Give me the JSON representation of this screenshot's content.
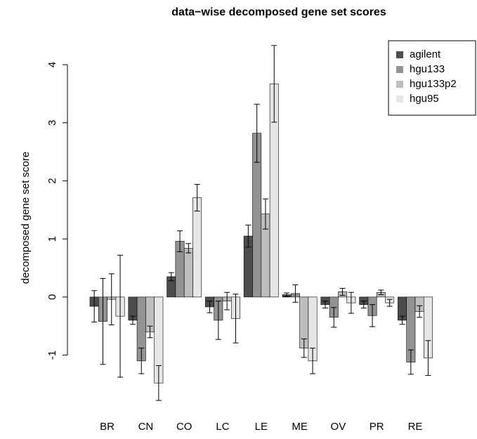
{
  "chart_data": {
    "type": "bar",
    "title": "data−wise decomposed gene set scores",
    "y_label": "decomposed gene set score",
    "categories": [
      "BR",
      "CN",
      "CO",
      "LC",
      "LE",
      "ME",
      "OV",
      "PR",
      "RE"
    ],
    "series": [
      {
        "name": "agilent",
        "color": "#4d4d4d",
        "values": [
          -0.16,
          -0.4,
          0.35,
          -0.17,
          1.05,
          0.04,
          -0.13,
          -0.13,
          -0.4
        ],
        "errors": [
          0.27,
          0.07,
          0.07,
          0.1,
          0.19,
          0.03,
          0.06,
          0.06,
          0.07
        ]
      },
      {
        "name": "hgu133",
        "color": "#939393",
        "values": [
          -0.42,
          -1.1,
          0.96,
          -0.4,
          2.82,
          0.06,
          -0.35,
          -0.32,
          -1.12
        ],
        "errors": [
          0.74,
          0.22,
          0.18,
          0.33,
          0.5,
          0.15,
          0.17,
          0.19,
          0.21
        ]
      },
      {
        "name": "hgu133p2",
        "color": "#bebebe",
        "values": [
          -0.04,
          -0.6,
          0.84,
          -0.07,
          1.43,
          -0.88,
          0.09,
          0.08,
          -0.25
        ],
        "errors": [
          0.44,
          0.1,
          0.08,
          0.15,
          0.26,
          0.16,
          0.06,
          0.04,
          0.1
        ]
      },
      {
        "name": "hgu95",
        "color": "#e6e6e6",
        "values": [
          -0.33,
          -1.48,
          1.71,
          -0.37,
          3.67,
          -1.1,
          -0.1,
          -0.1,
          -1.05
        ],
        "errors": [
          1.05,
          0.3,
          0.23,
          0.42,
          0.66,
          0.22,
          0.18,
          0.06,
          0.3
        ]
      }
    ],
    "ylim": [
      -1.9,
      4.4
    ],
    "yticks": [
      -1,
      0,
      1,
      2,
      3,
      4
    ],
    "legend": "top-right"
  }
}
